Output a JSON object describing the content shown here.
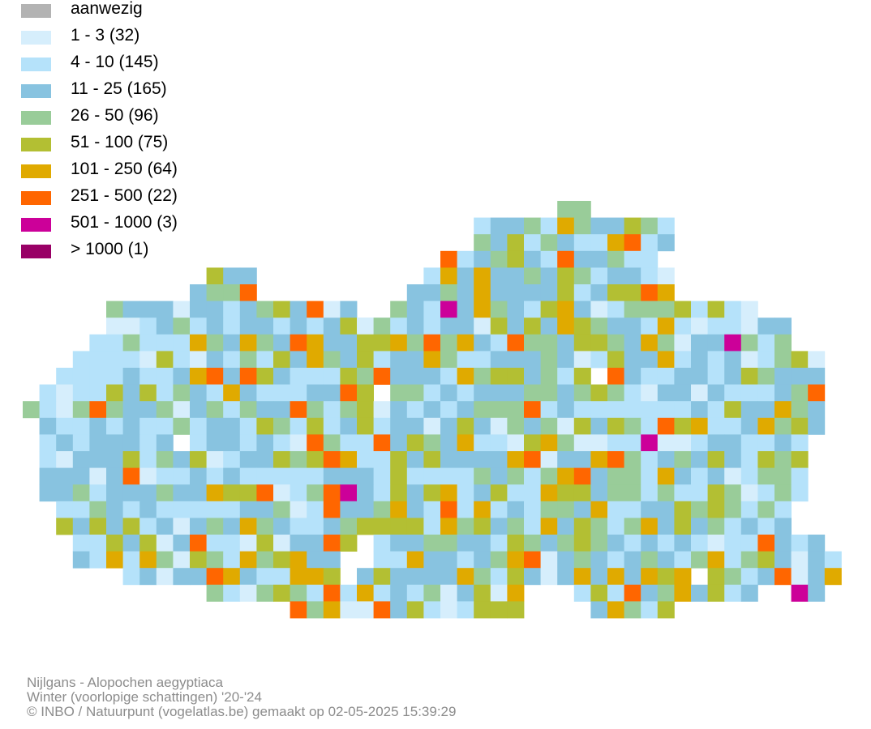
{
  "legend": [
    {
      "label": "aanwezig",
      "color": "#b3b3b3"
    },
    {
      "label": "1 - 3 (32)",
      "color": "#d6eefc"
    },
    {
      "label": "4 - 10 (145)",
      "color": "#b5e2fa"
    },
    {
      "label": "11 - 25 (165)",
      "color": "#88c3e0"
    },
    {
      "label": "26 - 50 (96)",
      "color": "#99cc99"
    },
    {
      "label": "51 - 100 (75)",
      "color": "#b3bf33"
    },
    {
      "label": "101 - 250 (64)",
      "color": "#e0aa00"
    },
    {
      "label": "251 - 500 (22)",
      "color": "#ff6600"
    },
    {
      "label": "501 - 1000 (3)",
      "color": "#cc0099"
    },
    {
      "label": "> 1000 (1)",
      "color": "#990066"
    }
  ],
  "footer": {
    "species": "Nijlgans - Alopochen aegyptiaca",
    "season": "Winter (voorlopige schattingen) '20-'24",
    "credit": "© INBO / Natuurpunt (vogelatlas.be) gemaakt op 02-05-2025 15:39:29"
  }
}
